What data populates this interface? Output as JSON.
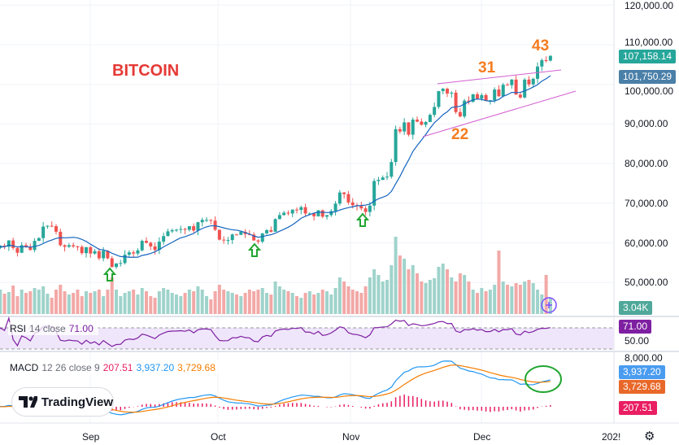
{
  "annotations": {
    "title": "BITCOIN",
    "n43": "43",
    "n31": "31",
    "n22": "22"
  },
  "price_axis": [
    "120,000.00",
    "110,000.00",
    "100,000.00",
    "90,000.00",
    "80,000.00",
    "70,000.00",
    "60,000.00",
    "50,000.00"
  ],
  "tags": {
    "price": "107,158.14",
    "ma": "101,750.29",
    "volume": "3.04K",
    "rsi": "71.00",
    "rsi_level": "50.00",
    "macd_axis": "8,000.00",
    "macd": "3,937.20",
    "signal": "3,729.68",
    "hist": "207.51"
  },
  "rsi": {
    "name": "RSI",
    "params": "14 close",
    "value": "71.00"
  },
  "macd": {
    "name": "MACD",
    "params": "12 26 close 9",
    "hist": "207.51",
    "macd": "3,937.20",
    "signal": "3,729.68"
  },
  "time_axis": {
    "sep": "Sep",
    "oct": "Oct",
    "nov": "Nov",
    "dec": "Dec",
    "y2025": "202!"
  },
  "logo": "TradingView",
  "colors": {
    "up": "#26a69a",
    "down": "#ef5350",
    "ma": "#2962ff",
    "rsi": "#7e1fa2",
    "macd": "#2196f3",
    "signal": "#f57c00",
    "hist": "#e91e63",
    "anno": "#f57c20",
    "title": "#e53935",
    "arrow": "#22a632"
  },
  "chart_data": {
    "type": "candlestick",
    "unit": "USD thousands",
    "closes": [
      58.7,
      59.3,
      59.0,
      60.6,
      58.7,
      57.5,
      59.4,
      59.0,
      58.2,
      60.5,
      61.2,
      64.1,
      64.3,
      64.2,
      62.8,
      59.4,
      59.0,
      59.4,
      59.1,
      59.0,
      57.4,
      58.9,
      57.3,
      57.9,
      56.1,
      58.0,
      56.1,
      53.9,
      54.8,
      54.9,
      57.0,
      57.6,
      57.3,
      58.1,
      60.5,
      60.0,
      59.1,
      58.2,
      60.3,
      61.7,
      62.9,
      63.2,
      63.3,
      63.5,
      63.3,
      64.2,
      63.1,
      65.2,
      65.8,
      65.8,
      65.6,
      63.3,
      60.8,
      60.6,
      60.7,
      62.1,
      62.0,
      62.8,
      62.2,
      62.1,
      60.6,
      60.3,
      62.4,
      63.2,
      62.8,
      66.0,
      67.0,
      67.6,
      67.4,
      68.4,
      68.3,
      69.0,
      67.4,
      67.4,
      66.7,
      68.2,
      66.6,
      67.0,
      68.0,
      69.9,
      72.7,
      72.3,
      70.2,
      69.5,
      69.3,
      68.7,
      67.8,
      69.4,
      75.6,
      75.9,
      76.5,
      76.7,
      80.4,
      88.7,
      88.1,
      90.4,
      87.3,
      91.1,
      90.6,
      89.8,
      90.5,
      92.3,
      94.3,
      98.3,
      98.9,
      97.7,
      97.9,
      93.0,
      91.9,
      95.9,
      95.6,
      97.5,
      96.4,
      97.3,
      95.8,
      96.0,
      98.7,
      97.0,
      99.9,
      99.8,
      101.2,
      97.4,
      96.7,
      101.2,
      100.0,
      101.4,
      104.5,
      106.1,
      106.0,
      107.2
    ],
    "volume_relative": [
      28,
      30,
      25,
      27,
      35,
      22,
      30,
      26,
      28,
      32,
      30,
      34,
      25,
      20,
      30,
      36,
      28,
      24,
      26,
      30,
      22,
      28,
      26,
      28,
      30,
      22,
      30,
      45,
      30,
      22,
      26,
      28,
      30,
      24,
      32,
      28,
      22,
      20,
      28,
      32,
      30,
      26,
      24,
      22,
      26,
      30,
      28,
      34,
      30,
      22,
      18,
      28,
      36,
      30,
      28,
      26,
      24,
      22,
      26,
      30,
      28,
      30,
      32,
      26,
      24,
      40,
      34,
      30,
      28,
      26,
      22,
      20,
      26,
      28,
      24,
      26,
      30,
      28,
      24,
      32,
      45,
      40,
      34,
      30,
      28,
      26,
      34,
      45,
      55,
      48,
      40,
      42,
      60,
      95,
      72,
      68,
      55,
      60,
      50,
      40,
      38,
      42,
      44,
      58,
      62,
      55,
      45,
      40,
      50,
      48,
      40,
      30,
      26,
      32,
      28,
      30,
      36,
      78,
      40,
      36,
      34,
      38,
      36,
      40,
      42,
      38,
      30,
      24,
      48,
      20
    ],
    "ylim": [
      45,
      122
    ]
  }
}
